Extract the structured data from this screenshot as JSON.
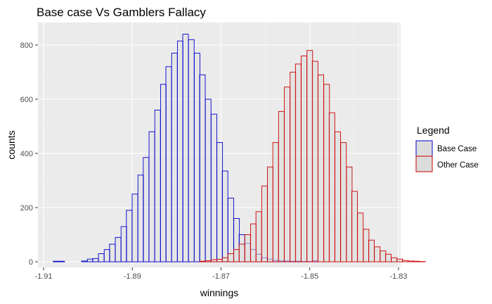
{
  "chart_data": {
    "type": "bar",
    "title": "Base case Vs Gamblers Fallacy",
    "xlabel": "winnings",
    "ylabel": "counts",
    "xlim": [
      -1.91,
      -1.83
    ],
    "ylim": [
      0,
      840
    ],
    "x_ticks": [
      -1.91,
      -1.89,
      -1.87,
      -1.85,
      -1.83
    ],
    "x_tick_labels": [
      "-1.91",
      "-1.89",
      "-1.87",
      "-1.85",
      "-1.83"
    ],
    "y_ticks": [
      0,
      200,
      400,
      600,
      800
    ],
    "y_tick_labels": [
      "0",
      "200",
      "400",
      "600",
      "800"
    ],
    "grid": true,
    "legend": {
      "title": "Legend",
      "position": "right"
    },
    "background": "#ebebeb",
    "bin_width": 0.00127,
    "series": [
      {
        "name": "Base Case",
        "stroke": "#0000cc",
        "fill": "#dcdcdc",
        "bins": [
          [
            -1.9072,
            2
          ],
          [
            -1.9059,
            2
          ],
          [
            -1.9008,
            3
          ],
          [
            -1.8995,
            10
          ],
          [
            -1.8983,
            12
          ],
          [
            -1.897,
            30
          ],
          [
            -1.8957,
            45
          ],
          [
            -1.8945,
            65
          ],
          [
            -1.8932,
            90
          ],
          [
            -1.8919,
            130
          ],
          [
            -1.8907,
            190
          ],
          [
            -1.8894,
            250
          ],
          [
            -1.8881,
            320
          ],
          [
            -1.8869,
            385
          ],
          [
            -1.8856,
            480
          ],
          [
            -1.8843,
            560
          ],
          [
            -1.883,
            655
          ],
          [
            -1.8818,
            720
          ],
          [
            -1.8805,
            770
          ],
          [
            -1.8792,
            815
          ],
          [
            -1.878,
            840
          ],
          [
            -1.8767,
            820
          ],
          [
            -1.8754,
            770
          ],
          [
            -1.8742,
            690
          ],
          [
            -1.8729,
            600
          ],
          [
            -1.8716,
            545
          ],
          [
            -1.8703,
            440
          ],
          [
            -1.8691,
            335
          ],
          [
            -1.8678,
            235
          ],
          [
            -1.8665,
            160
          ],
          [
            -1.8653,
            100
          ],
          [
            -1.864,
            68
          ],
          [
            -1.8627,
            45
          ],
          [
            -1.8615,
            28
          ],
          [
            -1.8602,
            15
          ],
          [
            -1.8589,
            10
          ],
          [
            -1.8577,
            5
          ],
          [
            -1.8564,
            3
          ],
          [
            -1.8551,
            3
          ],
          [
            -1.8538,
            2
          ],
          [
            -1.8526,
            2
          ],
          [
            -1.8513,
            1
          ],
          [
            -1.85,
            1
          ],
          [
            -1.8488,
            4
          ]
        ]
      },
      {
        "name": "Other Case",
        "stroke": "#cc0000",
        "fill": "#dcdcdc",
        "bins": [
          [
            -1.8742,
            2
          ],
          [
            -1.8729,
            4
          ],
          [
            -1.8716,
            8
          ],
          [
            -1.8703,
            9
          ],
          [
            -1.8691,
            15
          ],
          [
            -1.8678,
            30
          ],
          [
            -1.8665,
            45
          ],
          [
            -1.8653,
            65
          ],
          [
            -1.864,
            100
          ],
          [
            -1.8627,
            140
          ],
          [
            -1.8615,
            185
          ],
          [
            -1.8602,
            280
          ],
          [
            -1.8589,
            350
          ],
          [
            -1.8577,
            440
          ],
          [
            -1.8564,
            555
          ],
          [
            -1.8551,
            645
          ],
          [
            -1.8538,
            700
          ],
          [
            -1.8526,
            730
          ],
          [
            -1.8513,
            760
          ],
          [
            -1.85,
            780
          ],
          [
            -1.8488,
            740
          ],
          [
            -1.8475,
            690
          ],
          [
            -1.8462,
            655
          ],
          [
            -1.845,
            550
          ],
          [
            -1.8437,
            480
          ],
          [
            -1.8424,
            440
          ],
          [
            -1.8411,
            350
          ],
          [
            -1.8399,
            260
          ],
          [
            -1.8386,
            180
          ],
          [
            -1.8373,
            120
          ],
          [
            -1.8361,
            80
          ],
          [
            -1.8348,
            55
          ],
          [
            -1.8335,
            40
          ],
          [
            -1.8323,
            28
          ],
          [
            -1.831,
            15
          ],
          [
            -1.8297,
            10
          ],
          [
            -1.8285,
            5
          ],
          [
            -1.8272,
            3
          ],
          [
            -1.8259,
            2
          ],
          [
            -1.8246,
            1
          ]
        ]
      }
    ]
  }
}
